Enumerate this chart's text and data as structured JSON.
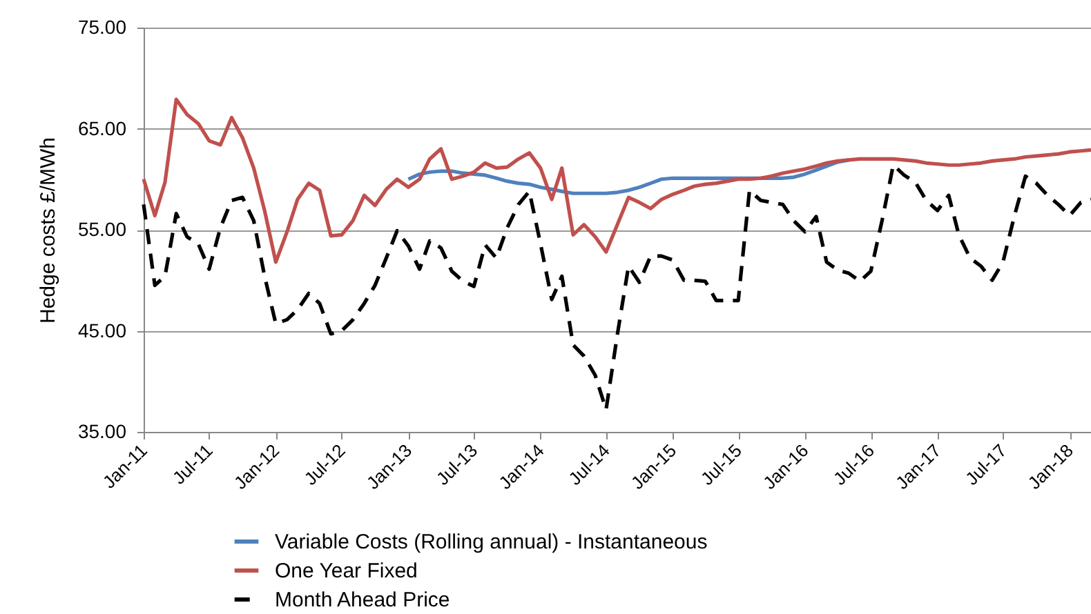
{
  "chart_data": {
    "type": "line",
    "ylabel": "Hedge costs £/MWh",
    "x": [
      "2011-01",
      "2011-02",
      "2011-03",
      "2011-04",
      "2011-05",
      "2011-06",
      "2011-07",
      "2011-08",
      "2011-09",
      "2011-10",
      "2011-11",
      "2011-12",
      "2012-01",
      "2012-02",
      "2012-03",
      "2012-04",
      "2012-05",
      "2012-06",
      "2012-07",
      "2012-08",
      "2012-09",
      "2012-10",
      "2012-11",
      "2012-12",
      "2013-01",
      "2013-02",
      "2013-03",
      "2013-04",
      "2013-05",
      "2013-06",
      "2013-07",
      "2013-08",
      "2013-09",
      "2013-10",
      "2013-11",
      "2013-12",
      "2014-01",
      "2014-02",
      "2014-03",
      "2014-04",
      "2014-05",
      "2014-06",
      "2014-07",
      "2014-08",
      "2014-09",
      "2014-10",
      "2014-11",
      "2014-12",
      "2015-01",
      "2015-02",
      "2015-03",
      "2015-04",
      "2015-05",
      "2015-06",
      "2015-07",
      "2015-08",
      "2015-09",
      "2015-10",
      "2015-11",
      "2015-12",
      "2016-01",
      "2016-02",
      "2016-03",
      "2016-04",
      "2016-05",
      "2016-06",
      "2016-07",
      "2016-08",
      "2016-09",
      "2016-10",
      "2016-11",
      "2016-12",
      "2017-01",
      "2017-02",
      "2017-03",
      "2017-04",
      "2017-05",
      "2017-06",
      "2017-07",
      "2017-08",
      "2017-09",
      "2017-10",
      "2017-11",
      "2017-12",
      "2018-01",
      "2018-02",
      "2018-03"
    ],
    "series": [
      {
        "name": "Variable Costs (Rolling annual) - Instantaneous",
        "color": "#4f81bd",
        "line_style": "solid",
        "values": [
          null,
          null,
          null,
          null,
          null,
          null,
          null,
          null,
          null,
          null,
          null,
          null,
          null,
          null,
          null,
          null,
          null,
          null,
          null,
          null,
          null,
          null,
          null,
          null,
          60.0,
          60.5,
          60.7,
          60.8,
          60.8,
          60.6,
          60.5,
          60.4,
          60.1,
          59.8,
          59.6,
          59.5,
          59.2,
          59.0,
          58.8,
          58.6,
          58.6,
          58.6,
          58.6,
          58.7,
          58.9,
          59.2,
          59.6,
          60.0,
          60.1,
          60.1,
          60.1,
          60.1,
          60.1,
          60.1,
          60.1,
          60.1,
          60.1,
          60.1,
          60.1,
          60.2,
          60.5,
          60.9,
          61.3,
          61.7,
          61.9,
          null,
          null,
          null,
          null,
          null,
          null,
          null,
          null,
          null,
          null,
          null,
          null,
          null,
          null,
          null,
          null,
          null,
          null,
          null,
          null,
          null,
          null
        ]
      },
      {
        "name": "One Year Fixed",
        "color": "#c0504d",
        "line_style": "solid",
        "values": [
          60.0,
          56.4,
          59.7,
          67.9,
          66.4,
          65.5,
          63.8,
          63.4,
          66.1,
          64.1,
          61.1,
          56.9,
          51.8,
          54.8,
          58.0,
          59.6,
          58.9,
          54.4,
          54.5,
          55.9,
          58.4,
          57.4,
          59.0,
          60.0,
          59.2,
          60.0,
          62.0,
          63.0,
          60.0,
          60.3,
          60.7,
          61.6,
          61.1,
          61.2,
          62.0,
          62.6,
          61.1,
          58.0,
          61.1,
          54.5,
          55.5,
          54.3,
          52.8,
          55.5,
          58.2,
          57.7,
          57.1,
          58.0,
          58.5,
          58.9,
          59.3,
          59.5,
          59.6,
          59.8,
          60.0,
          60.0,
          60.1,
          60.3,
          60.6,
          60.8,
          61.0,
          61.3,
          61.6,
          61.8,
          61.9,
          62.0,
          62.0,
          62.0,
          62.0,
          61.9,
          61.8,
          61.6,
          61.5,
          61.4,
          61.4,
          61.5,
          61.6,
          61.8,
          61.9,
          62.0,
          62.2,
          62.3,
          62.4,
          62.5,
          62.7,
          62.8,
          62.9
        ]
      },
      {
        "name": "Month Ahead Price",
        "color": "#000000",
        "line_style": "dashed",
        "values": [
          57.5,
          49.5,
          50.4,
          56.6,
          54.3,
          53.6,
          51.1,
          55.2,
          57.9,
          58.2,
          55.9,
          50.4,
          45.7,
          46.1,
          47.1,
          48.7,
          47.7,
          44.7,
          45.0,
          46.1,
          47.7,
          49.5,
          52.2,
          54.9,
          53.4,
          51.1,
          53.9,
          53.2,
          50.9,
          49.9,
          49.4,
          53.5,
          52.2,
          55.2,
          57.5,
          58.8,
          53.6,
          48.1,
          50.4,
          43.6,
          42.5,
          40.6,
          37.2,
          44.6,
          51.4,
          49.8,
          52.4,
          52.4,
          52.0,
          50.0,
          50.0,
          49.9,
          48.0,
          48.0,
          48.0,
          58.9,
          57.9,
          57.7,
          57.5,
          55.9,
          54.8,
          56.3,
          51.8,
          51.0,
          50.7,
          49.9,
          50.9,
          55.9,
          61.4,
          60.4,
          59.7,
          57.9,
          56.9,
          58.4,
          54.5,
          52.2,
          51.4,
          50.0,
          51.8,
          56.3,
          60.3,
          59.6,
          58.4,
          57.5,
          56.4,
          57.7,
          58.0
        ]
      }
    ],
    "xlim": [
      "2011-01",
      "2018-03"
    ],
    "xticks": [
      {
        "value": "2011-01",
        "label": "Jan-11"
      },
      {
        "value": "2011-07",
        "label": "Jul-11"
      },
      {
        "value": "2012-01",
        "label": "Jan-12"
      },
      {
        "value": "2012-07",
        "label": "Jul-12"
      },
      {
        "value": "2013-01",
        "label": "Jan-13"
      },
      {
        "value": "2013-07",
        "label": "Jul-13"
      },
      {
        "value": "2014-01",
        "label": "Jan-14"
      },
      {
        "value": "2014-07",
        "label": "Jul-14"
      },
      {
        "value": "2015-01",
        "label": "Jan-15"
      },
      {
        "value": "2015-07",
        "label": "Jul-15"
      },
      {
        "value": "2016-01",
        "label": "Jan-16"
      },
      {
        "value": "2016-07",
        "label": "Jul-16"
      },
      {
        "value": "2017-01",
        "label": "Jan-17"
      },
      {
        "value": "2017-07",
        "label": "Jul-17"
      },
      {
        "value": "2018-01",
        "label": "Jan-18"
      }
    ],
    "ylim": [
      35,
      75
    ],
    "yticks": [
      {
        "value": 35,
        "label": "35.00"
      },
      {
        "value": 45,
        "label": "45.00"
      },
      {
        "value": 55,
        "label": "55.00"
      },
      {
        "value": 65,
        "label": "65.00"
      },
      {
        "value": 75,
        "label": "75.00"
      }
    ],
    "grid": "y",
    "legend": "bottom",
    "marker": "none"
  }
}
